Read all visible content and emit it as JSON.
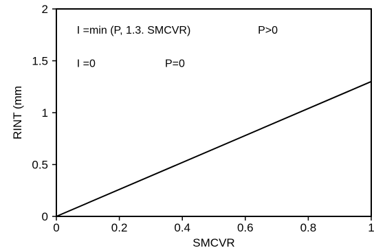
{
  "chart_data": {
    "type": "line",
    "title": "",
    "xlabel": "SMCVR",
    "ylabel": "RINT (mm",
    "xlim": [
      0,
      1
    ],
    "ylim": [
      0,
      2
    ],
    "x_ticks": [
      0,
      0.2,
      0.4,
      0.6,
      0.8,
      1
    ],
    "x_tick_labels": [
      "0",
      "0.2",
      "0.4",
      "0.6",
      "0.8",
      "1"
    ],
    "y_ticks": [
      0,
      0.5,
      1,
      1.5,
      2
    ],
    "y_tick_labels": [
      "0",
      "0.5",
      "1",
      "1.5",
      "2"
    ],
    "grid": false,
    "series": [
      {
        "x": [
          0,
          1
        ],
        "y": [
          0,
          1.3
        ],
        "color": "#000000"
      }
    ],
    "annotations": [
      {
        "text": "I =min (P, 1.3. SMCVR)",
        "x": 0.065,
        "y": 1.76
      },
      {
        "text": "P>0",
        "x": 0.64,
        "y": 1.76
      },
      {
        "text": "I =0",
        "x": 0.065,
        "y": 1.44
      },
      {
        "text": "P=0",
        "x": 0.345,
        "y": 1.44
      }
    ]
  }
}
